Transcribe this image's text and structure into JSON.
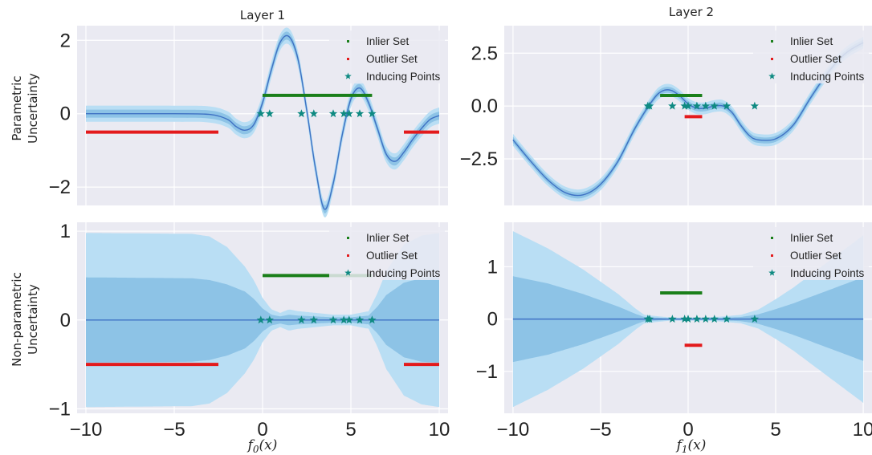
{
  "chart_data": {
    "type": "line",
    "columns": [
      {
        "title": "Layer 1",
        "xlabel_var": "f",
        "xlabel_sub": "0",
        "xlabel_arg": "(x)",
        "xlim": [
          -10.5,
          10.5
        ],
        "xticks": [
          -10,
          -5,
          0,
          5,
          10
        ]
      },
      {
        "title": "Layer 2",
        "xlabel_var": "f",
        "xlabel_sub": "1",
        "xlabel_arg": "(x)",
        "xlim": [
          -10.5,
          10.5
        ],
        "xticks": [
          -10,
          -5,
          0,
          5,
          10
        ]
      }
    ],
    "rows": [
      {
        "ylabel_line1": "Parametric",
        "ylabel_line2": "Uncertainty"
      },
      {
        "ylabel_line1": "Non-parametric",
        "ylabel_line2": "Uncertainty"
      }
    ],
    "legend": {
      "placement": "top-right",
      "entries": [
        "Inlier Set",
        "Outlier Set",
        "Inducing Points"
      ]
    },
    "colors": {
      "mean": "#3f72c4",
      "band_outer": "#b9def4",
      "band_inner": "#8dc3e6",
      "inlier": "#1a7f1a",
      "outlier": "#e31a1c",
      "inducing": "#0f8a82",
      "grid_bg": "#eaeaf2"
    },
    "grid": true,
    "panels": [
      {
        "id": "layer1-parametric",
        "ylim": [
          -2.5,
          2.4
        ],
        "yticks": [
          -2,
          0,
          2
        ],
        "mean": {
          "x": [
            -10,
            -5,
            -3,
            -2,
            -1.5,
            -1,
            -0.5,
            0,
            0.5,
            1,
            1.5,
            2,
            2.5,
            3,
            3.5,
            4,
            4.5,
            5,
            5.5,
            6,
            6.5,
            7,
            7.5,
            8,
            8.5,
            9,
            9.5,
            10
          ],
          "y": [
            0,
            0,
            -0.02,
            -0.15,
            -0.35,
            -0.45,
            -0.3,
            0.3,
            1.2,
            1.95,
            2.1,
            1.5,
            0.1,
            -1.5,
            -2.6,
            -1.9,
            -0.6,
            0.4,
            0.7,
            0.3,
            -0.4,
            -1.1,
            -1.3,
            -1.05,
            -0.7,
            -0.4,
            -0.15,
            -0.05
          ]
        },
        "band_outer": 0.22,
        "band_inner": 0.11,
        "inlier": {
          "x": [
            0,
            6.2
          ],
          "y": 0.5
        },
        "outlier": [
          {
            "x": [
              -10,
              -2.5
            ],
            "y": -0.5
          },
          {
            "x": [
              8,
              10
            ],
            "y": -0.5
          }
        ],
        "inducing_x": [
          -0.1,
          0.4,
          2.2,
          2.9,
          4.0,
          4.6,
          4.9,
          5.5,
          6.2
        ],
        "inducing_y": 0
      },
      {
        "id": "layer2-parametric",
        "ylim": [
          -4.7,
          3.8
        ],
        "yticks": [
          -2.5,
          0.0,
          2.5
        ],
        "ytick_labels": [
          "−2.5",
          "0.0",
          "2.5"
        ],
        "mean": {
          "x": [
            -10,
            -9,
            -8,
            -7,
            -6,
            -5,
            -4,
            -3,
            -2,
            -1.5,
            -1,
            -0.5,
            0,
            0.5,
            1,
            1.5,
            2,
            2.5,
            3,
            3.5,
            4,
            5,
            6,
            7,
            8,
            9,
            10
          ],
          "y": [
            -1.6,
            -2.6,
            -3.5,
            -4.1,
            -4.2,
            -3.7,
            -2.6,
            -1.0,
            0.3,
            0.7,
            0.75,
            0.5,
            0.1,
            -0.1,
            -0.1,
            0.0,
            0.0,
            -0.3,
            -0.9,
            -1.4,
            -1.6,
            -1.55,
            -0.9,
            0.4,
            1.6,
            2.5,
            3.0
          ]
        },
        "band_outer": 0.28,
        "band_inner": 0.14,
        "inlier": {
          "x": [
            -1.6,
            0.8
          ],
          "y": 0.5
        },
        "outlier": [
          {
            "x": [
              -0.2,
              0.8
            ],
            "y": -0.5
          }
        ],
        "inducing_x": [
          -2.3,
          -2.2,
          -0.9,
          -0.2,
          0.0,
          0.5,
          1.0,
          1.5,
          2.2,
          3.8
        ],
        "inducing_y": 0
      },
      {
        "id": "layer1-nonparametric",
        "ylim": [
          -1.05,
          1.1
        ],
        "yticks": [
          -1,
          0,
          1
        ],
        "mean": {
          "x": [
            -10,
            10
          ],
          "y": [
            0,
            0
          ]
        },
        "band": {
          "x": [
            -10,
            -4,
            -3,
            -2,
            -1,
            -0.5,
            0,
            0.5,
            1,
            1.5,
            2,
            3,
            4,
            5,
            6,
            6.5,
            7,
            8,
            9,
            10
          ],
          "outer": [
            0.98,
            0.97,
            0.94,
            0.82,
            0.6,
            0.45,
            0.25,
            0.12,
            0.08,
            0.12,
            0.1,
            0.08,
            0.06,
            0.06,
            0.1,
            0.3,
            0.55,
            0.85,
            0.95,
            0.98
          ],
          "inner": [
            0.48,
            0.47,
            0.45,
            0.4,
            0.32,
            0.24,
            0.13,
            0.06,
            0.04,
            0.06,
            0.05,
            0.04,
            0.03,
            0.03,
            0.05,
            0.15,
            0.28,
            0.42,
            0.47,
            0.48
          ]
        },
        "inlier": {
          "x": [
            0,
            6.2
          ],
          "y": 0.5
        },
        "outlier": [
          {
            "x": [
              -10,
              -2.5
            ],
            "y": -0.5
          },
          {
            "x": [
              8,
              10
            ],
            "y": -0.5
          }
        ],
        "inducing_x": [
          -0.1,
          0.4,
          2.2,
          2.9,
          4.0,
          4.6,
          4.9,
          5.5,
          6.2
        ],
        "inducing_y": 0
      },
      {
        "id": "layer2-nonparametric",
        "ylim": [
          -1.8,
          1.85
        ],
        "yticks": [
          -1,
          0,
          1
        ],
        "mean": {
          "x": [
            -10,
            10
          ],
          "y": [
            0,
            0
          ]
        },
        "band": {
          "x": [
            -10,
            -8,
            -6,
            -4,
            -3,
            -2.5,
            -1,
            1,
            2,
            3,
            4,
            5,
            6,
            8,
            10
          ],
          "outer": [
            1.68,
            1.35,
            0.95,
            0.48,
            0.2,
            0.08,
            0.03,
            0.03,
            0.05,
            0.08,
            0.18,
            0.38,
            0.6,
            1.1,
            1.6
          ],
          "inner": [
            0.82,
            0.68,
            0.48,
            0.24,
            0.1,
            0.04,
            0.015,
            0.015,
            0.025,
            0.04,
            0.09,
            0.19,
            0.3,
            0.55,
            0.8
          ]
        },
        "inlier": {
          "x": [
            -1.6,
            0.8
          ],
          "y": 0.5
        },
        "outlier": [
          {
            "x": [
              -0.2,
              0.8
            ],
            "y": -0.5
          }
        ],
        "inducing_x": [
          -2.3,
          -2.2,
          -0.9,
          -0.2,
          0.0,
          0.5,
          1.0,
          1.5,
          2.2,
          3.8
        ],
        "inducing_y": 0
      }
    ]
  }
}
